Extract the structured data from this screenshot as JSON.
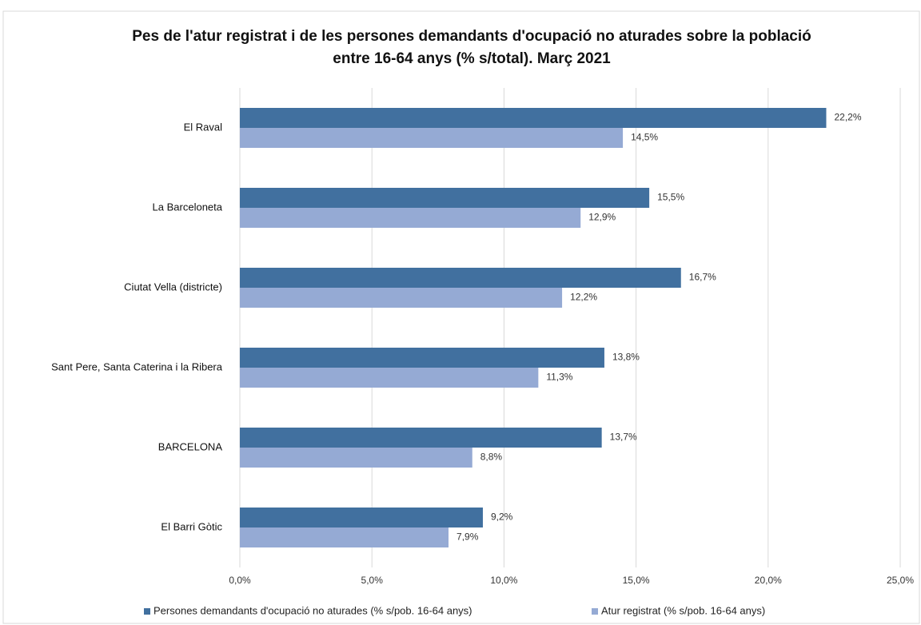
{
  "chart_data": {
    "type": "barh",
    "title": "Pes de l'atur registrat i de les persones demandants d'ocupació no aturades sobre la població entre 16-64 anys (% s/total). Març 2021",
    "categories": [
      "El Raval",
      "La Barceloneta",
      "Ciutat Vella (districte)",
      "Sant Pere, Santa Caterina i la Ribera",
      "BARCELONA",
      "El Barri Gòtic"
    ],
    "series": [
      {
        "name": "Persones demandants d'ocupació no aturades (% s/pob. 16-64 anys)",
        "color": "#41709f",
        "values": [
          22.2,
          15.5,
          16.7,
          13.8,
          13.7,
          9.2
        ],
        "value_labels": [
          "22,2%",
          "15,5%",
          "16,7%",
          "13,8%",
          "13,7%",
          "9,2%"
        ]
      },
      {
        "name": "Atur registrat (% s/pob. 16-64 anys)",
        "color": "#95aad4",
        "values": [
          14.5,
          12.9,
          12.2,
          11.3,
          8.8,
          7.9
        ],
        "value_labels": [
          "14,5%",
          "12,9%",
          "12,2%",
          "11,3%",
          "8,8%",
          "7,9%"
        ]
      }
    ],
    "xlim": [
      0,
      25
    ],
    "xticks": [
      {
        "value": 0,
        "label": "0,0%"
      },
      {
        "value": 5,
        "label": "5,0%"
      },
      {
        "value": 10,
        "label": "10,0%"
      },
      {
        "value": 15,
        "label": "15,0%"
      },
      {
        "value": 20,
        "label": "20,0%"
      },
      {
        "value": 25,
        "label": "25,0%"
      }
    ],
    "grid": true,
    "legend": "bottom"
  }
}
